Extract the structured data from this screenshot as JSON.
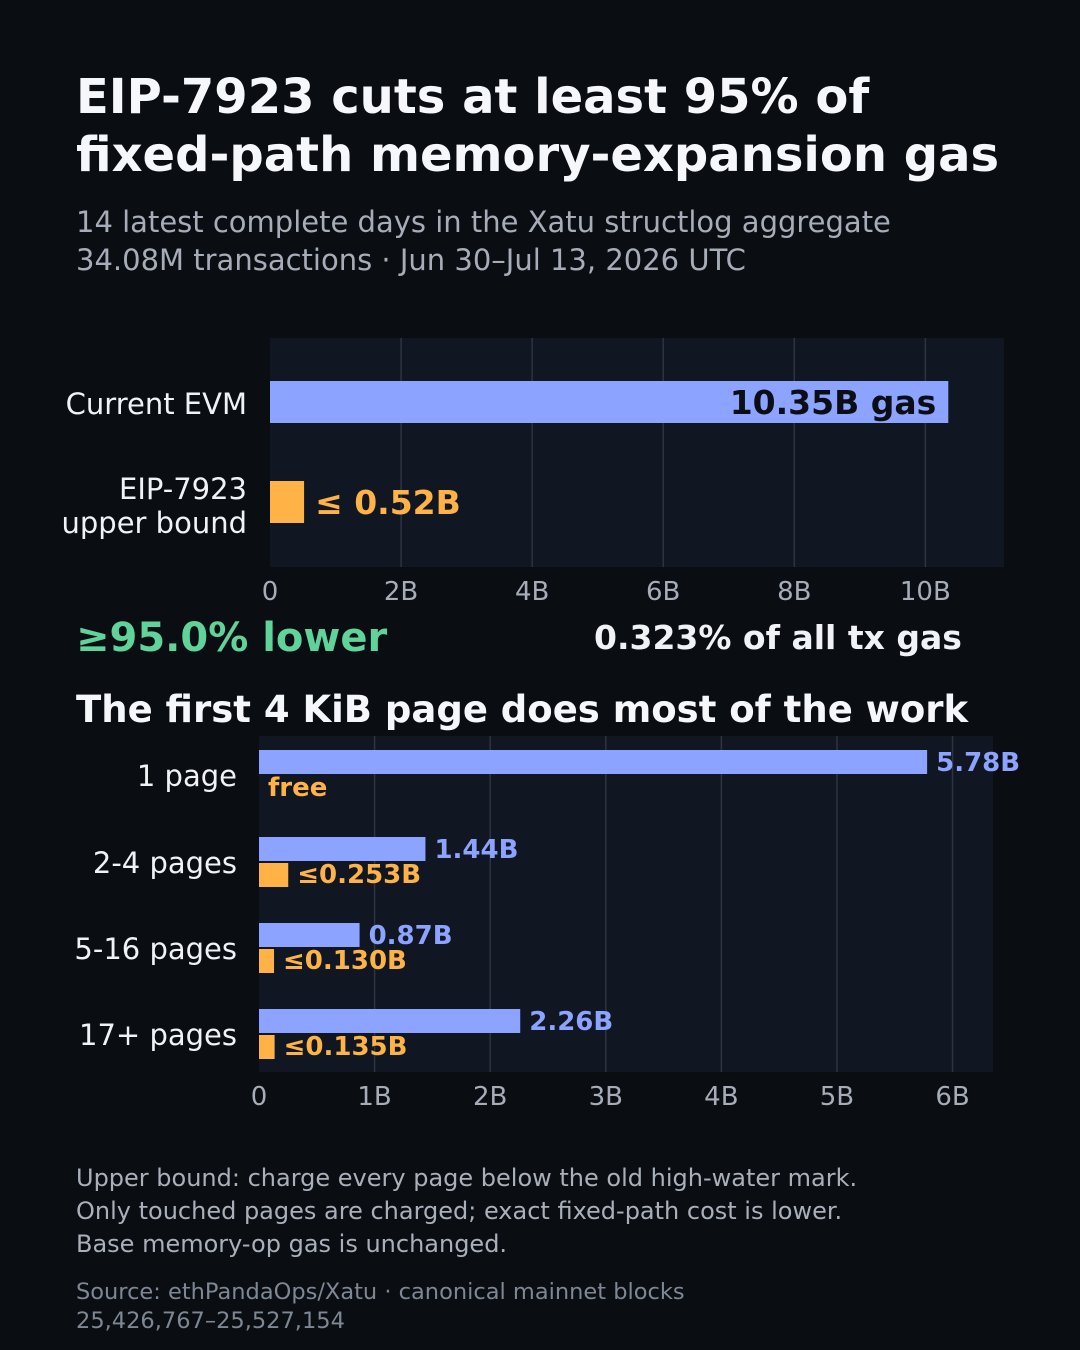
{
  "header": {
    "title_line1": "EIP-7923 cuts at least 95% of",
    "title_line2": "fixed-path memory-expansion gas",
    "subtitle_line1": "14 latest complete days in the Xatu structlog aggregate",
    "subtitle_line2": "34.08M transactions · Jun 30–Jul 13, 2026 UTC"
  },
  "stats": {
    "reduction": "≥95.0% lower",
    "share": "0.323% of all tx gas"
  },
  "colors": {
    "current": "#8ca3ff",
    "eip": "#ffb347",
    "reduction": "#5fd39a",
    "panel": "#111722",
    "background": "#0a0d12"
  },
  "chart_data": [
    {
      "type": "bar",
      "orientation": "horizontal",
      "title": "",
      "xlabel": "",
      "ylabel": "",
      "categories": [
        "Current EVM",
        "EIP-7923 upper bound"
      ],
      "values": [
        10.35,
        0.52
      ],
      "unit": "B gas",
      "data_labels": [
        "10.35B gas",
        "≤ 0.52B"
      ],
      "xlim": [
        0,
        11.2
      ],
      "xticks": [
        0,
        2,
        4,
        6,
        8,
        10
      ],
      "xtick_labels": [
        "0",
        "2B",
        "4B",
        "6B",
        "8B",
        "10B"
      ],
      "grid": true,
      "legend": "none"
    },
    {
      "type": "bar",
      "orientation": "horizontal",
      "title": "The first 4 KiB page does most of the work",
      "xlabel": "",
      "ylabel": "",
      "categories": [
        "1 page",
        "2-4 pages",
        "5-16 pages",
        "17+ pages"
      ],
      "series": [
        {
          "values": [
            5.78,
            1.44,
            0.87,
            2.26
          ],
          "labels": [
            "5.78B",
            "1.44B",
            "0.87B",
            "2.26B"
          ]
        },
        {
          "values": [
            0,
            0.253,
            0.13,
            0.135
          ],
          "labels": [
            "free",
            "≤0.253B",
            "≤0.130B",
            "≤0.135B"
          ]
        }
      ],
      "xlim": [
        0,
        6.35
      ],
      "xticks": [
        0,
        1,
        2,
        3,
        4,
        5,
        6
      ],
      "xtick_labels": [
        "0",
        "1B",
        "2B",
        "3B",
        "4B",
        "5B",
        "6B"
      ],
      "grid": true,
      "legend": "none"
    }
  ],
  "footer": {
    "note_line1": "Upper bound: charge every page below the old high-water mark.",
    "note_line2": "Only touched pages are charged; exact fixed-path cost is lower.",
    "note_line3": "Base memory-op gas is unchanged.",
    "source_line1": "Source: ethPandaOps/Xatu · canonical mainnet blocks",
    "source_line2": "25,426,767–25,527,154"
  }
}
